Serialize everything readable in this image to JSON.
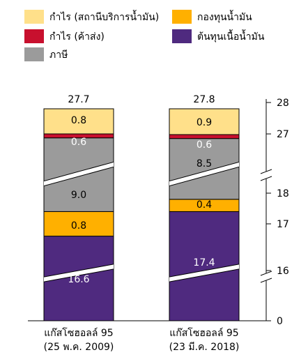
{
  "chart_data": {
    "type": "bar",
    "stacked": true,
    "broken_axis": true,
    "categories": [
      {
        "line1": "แก๊สโซฮอลล์ 95",
        "line2": "(25 พ.ค. 2009)"
      },
      {
        "line1": "แก๊สโซฮอลล์ 95",
        "line2": "(23 มี.ค. 2018)"
      }
    ],
    "totals": [
      "27.7",
      "27.8"
    ],
    "series": [
      {
        "name": "ต้นทุนเนื้อน้ำมัน",
        "color": "#4F2A7F",
        "label_color": "#ffffff",
        "values": [
          16.6,
          17.4
        ]
      },
      {
        "name": "กองทุนน้ำมัน",
        "color": "#FFB000",
        "label_color": "#000000",
        "values": [
          0.8,
          0.4
        ]
      },
      {
        "name": "ภาษี",
        "color": "#9B9B9B",
        "label_color": "#000000",
        "values": [
          9.0,
          8.5
        ]
      },
      {
        "name": "กำไร (ค้าส่ง)",
        "color": "#C8102E",
        "label_color": "#ffffff",
        "values": [
          0.6,
          0.6
        ]
      },
      {
        "name": "กำไร (สถานีบริการน้ำมัน)",
        "color": "#FFE08A",
        "label_color": "#000000",
        "values": [
          0.8,
          0.9
        ]
      }
    ],
    "value_labels": [
      [
        "16.6",
        "17.4"
      ],
      [
        "0.8",
        "0.4"
      ],
      [
        "9.0",
        "8.5"
      ],
      [
        "0.6",
        "0.6"
      ],
      [
        "0.8",
        "0.9"
      ]
    ],
    "legend_order": [
      4,
      1,
      3,
      0,
      2
    ],
    "y_ticks": [
      "28",
      "27",
      "18",
      "17",
      "16",
      "0"
    ],
    "y_tick_values": [
      28,
      27,
      18,
      17,
      16,
      0
    ],
    "ylim": [
      0,
      28
    ],
    "grid": false,
    "legend_position": "top"
  }
}
